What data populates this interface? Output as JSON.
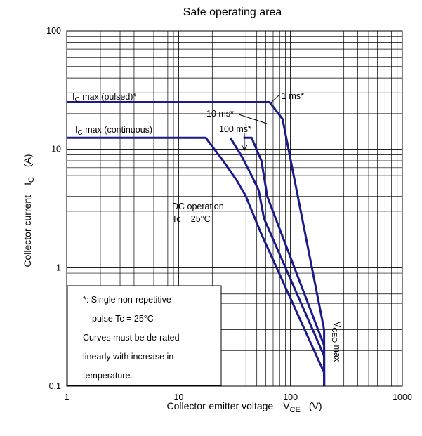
{
  "chart_data": {
    "type": "line",
    "title": "Safe operating area",
    "xlabel": {
      "main": "Collector-emitter voltage",
      "symbol": "V",
      "subscript": "CE",
      "unit": "(V)"
    },
    "ylabel": {
      "main": "Collector current",
      "symbol": "I",
      "subscript": "C",
      "unit": "(A)"
    },
    "x_scale": "log",
    "y_scale": "log",
    "xlim": [
      1,
      1000
    ],
    "ylim": [
      0.1,
      100
    ],
    "x_ticks": [
      "1",
      "10",
      "100",
      "1000"
    ],
    "y_ticks": [
      "0.1",
      "1",
      "10",
      "100"
    ],
    "grid": true,
    "series": [
      {
        "name": "1 ms*",
        "points": [
          [
            40,
            25
          ],
          [
            65,
            25
          ],
          [
            85,
            18
          ],
          [
            200,
            0.3
          ],
          [
            200,
            0.1
          ]
        ]
      },
      {
        "name": "10 ms*",
        "points": [
          [
            38,
            12.5
          ],
          [
            45,
            12.5
          ],
          [
            55,
            8
          ],
          [
            62,
            4
          ],
          [
            200,
            0.22
          ],
          [
            200,
            0.1
          ]
        ]
      },
      {
        "name": "100 ms*",
        "points": [
          [
            29,
            12.5
          ],
          [
            36,
            9
          ],
          [
            45,
            6
          ],
          [
            52,
            4.5
          ],
          [
            58,
            2.6
          ],
          [
            200,
            0.18
          ],
          [
            200,
            0.1
          ]
        ]
      },
      {
        "name": "DC operation",
        "points": [
          [
            1,
            12.5
          ],
          [
            17.5,
            12.5
          ],
          [
            25,
            8
          ],
          [
            33,
            5.5
          ],
          [
            40,
            4
          ],
          [
            54,
            2
          ],
          [
            200,
            0.13
          ],
          [
            200,
            0.1
          ]
        ]
      },
      {
        "name": "Ic max (pulsed)*",
        "points": [
          [
            1,
            25
          ],
          [
            40,
            25
          ]
        ]
      }
    ],
    "annotations": {
      "pulsed_prefix": "I",
      "pulsed_sub": "C",
      "pulsed_suffix": " max (pulsed)*",
      "cont_prefix": "I",
      "cont_sub": "C",
      "cont_suffix": " max (continuous)",
      "ms1": "1 ms*",
      "ms10": "10 ms*",
      "ms100": "100 ms*",
      "dc_line1": "DC operation",
      "dc_line2": "Tc = 25°C",
      "vceo_prefix": "V",
      "vceo_sub": "CEO",
      "vceo_suffix": " max"
    },
    "note": [
      "*:  Single non-repetitive",
      "pulse    Tc = 25°C",
      "Curves must be de-rated",
      "linearly with increase in",
      "temperature."
    ]
  },
  "colors": {
    "curve": "#1a1a8a",
    "grid": "#000000",
    "axis": "#000000",
    "text": "#000000",
    "note_bg": "#ffffff"
  }
}
